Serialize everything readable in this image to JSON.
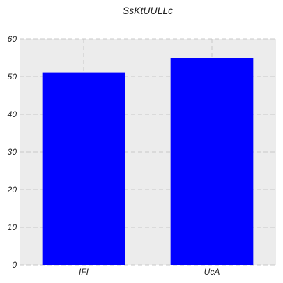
{
  "chart_data": {
    "type": "bar",
    "title": "SsKtUULLc",
    "xlabel": "",
    "ylabel": "",
    "categories": [
      "IFI",
      "UcA"
    ],
    "values": [
      51,
      55
    ],
    "ylim": [
      0,
      60
    ],
    "yticks": [
      0,
      10,
      20,
      30,
      40,
      50,
      60
    ],
    "grid": true,
    "colors": {
      "bar": "#0000ff",
      "plot_background": "#ececec",
      "grid": "#c8c8c8"
    }
  }
}
